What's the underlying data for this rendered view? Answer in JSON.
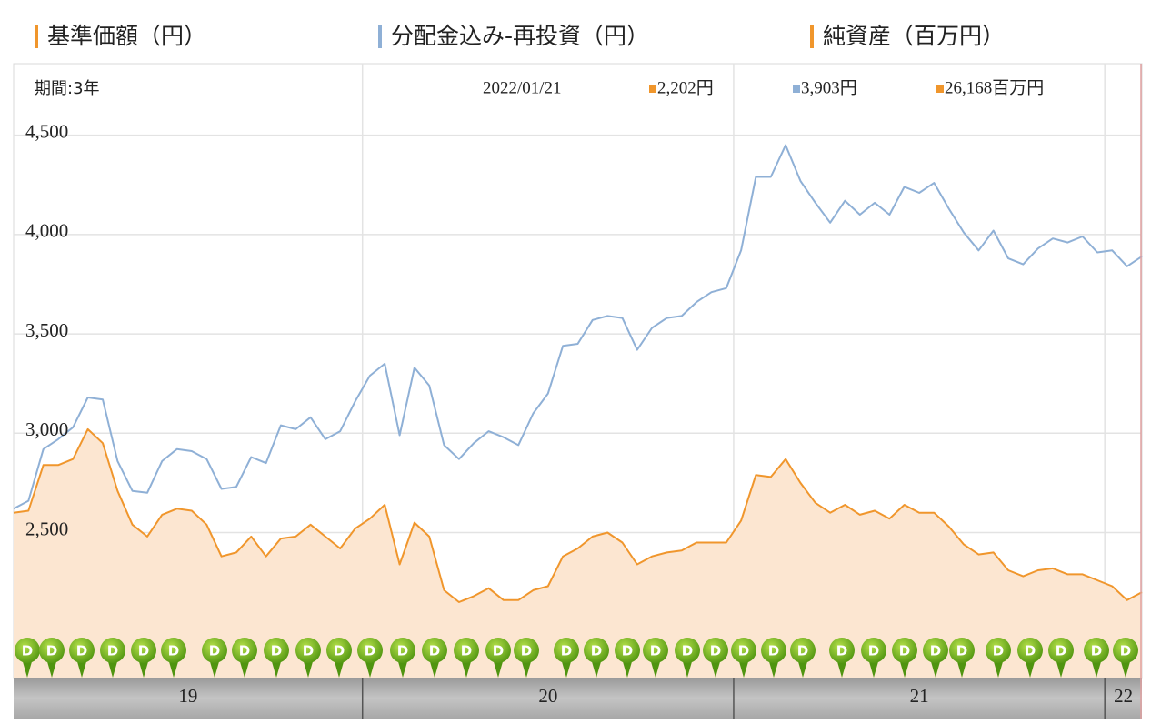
{
  "header": [
    {
      "label": "基準価額（円）",
      "color": "#f0962c"
    },
    {
      "label": "分配金込み-再投資（円）",
      "color": "#8fb0d6"
    },
    {
      "label": "純資産（百万円）",
      "color": "#f0962c"
    }
  ],
  "chart_data": {
    "type": "line",
    "status": {
      "period": "期間:3年",
      "date": "2022/01/21",
      "items": [
        {
          "label": "2,202円",
          "color": "#f0962c"
        },
        {
          "label": "3,903円",
          "color": "#8fb0d6"
        },
        {
          "label": "26,168百万円",
          "color": "#f0962c"
        }
      ]
    },
    "marker_label": "D",
    "xlim": [
      2019.06,
      2022.1
    ],
    "xticks": [
      2020,
      2021,
      2022
    ],
    "year_labels": [
      "19",
      "20",
      "21",
      "22"
    ],
    "ylim": [
      1770,
      4860
    ],
    "yticks": [
      {
        "value": 2500,
        "label": "2,500"
      },
      {
        "value": 3000,
        "label": "3,000"
      },
      {
        "value": 3500,
        "label": "3,500"
      },
      {
        "value": 4000,
        "label": "4,000"
      },
      {
        "value": 4500,
        "label": "4,500"
      }
    ],
    "grid": true,
    "x": [
      2019.06,
      2019.1,
      2019.14,
      2019.18,
      2019.22,
      2019.26,
      2019.3,
      2019.34,
      2019.38,
      2019.42,
      2019.46,
      2019.5,
      2019.54,
      2019.58,
      2019.62,
      2019.66,
      2019.7,
      2019.74,
      2019.78,
      2019.82,
      2019.86,
      2019.9,
      2019.94,
      2019.98,
      2020.02,
      2020.06,
      2020.1,
      2020.14,
      2020.18,
      2020.22,
      2020.26,
      2020.3,
      2020.34,
      2020.38,
      2020.42,
      2020.46,
      2020.5,
      2020.54,
      2020.58,
      2020.62,
      2020.66,
      2020.7,
      2020.74,
      2020.78,
      2020.82,
      2020.86,
      2020.9,
      2020.94,
      2020.98,
      2021.02,
      2021.06,
      2021.1,
      2021.14,
      2021.18,
      2021.22,
      2021.26,
      2021.3,
      2021.34,
      2021.38,
      2021.42,
      2021.46,
      2021.5,
      2021.54,
      2021.58,
      2021.62,
      2021.66,
      2021.7,
      2021.74,
      2021.78,
      2021.82,
      2021.86,
      2021.9,
      2021.94,
      2021.98,
      2022.02,
      2022.06,
      2022.1
    ],
    "series": [
      {
        "color": "#8fb0d6",
        "values": [
          2620,
          2660,
          2920,
          2970,
          3030,
          3180,
          3170,
          2860,
          2710,
          2700,
          2860,
          2920,
          2910,
          2870,
          2720,
          2730,
          2880,
          2850,
          3040,
          3020,
          3080,
          2970,
          3010,
          3160,
          3290,
          3350,
          2990,
          3330,
          3240,
          2940,
          2870,
          2950,
          3010,
          2980,
          2940,
          3100,
          3200,
          3440,
          3450,
          3570,
          3590,
          3580,
          3420,
          3530,
          3580,
          3590,
          3660,
          3710,
          3730,
          3920,
          4290,
          4290,
          4450,
          4270,
          4160,
          4060,
          4170,
          4100,
          4160,
          4100,
          4240,
          4210,
          4260,
          4130,
          4010,
          3920,
          4020,
          3880,
          3850,
          3930,
          3980,
          3960,
          3990,
          3910,
          3920,
          3840,
          3890
        ]
      },
      {
        "color": "#f0962c",
        "fill": "#fce6d1",
        "values": [
          2600,
          2610,
          2840,
          2840,
          2870,
          3020,
          2950,
          2710,
          2540,
          2480,
          2590,
          2620,
          2610,
          2540,
          2380,
          2400,
          2480,
          2380,
          2470,
          2480,
          2540,
          2480,
          2420,
          2520,
          2570,
          2640,
          2340,
          2550,
          2480,
          2210,
          2150,
          2180,
          2220,
          2160,
          2160,
          2210,
          2230,
          2380,
          2420,
          2480,
          2500,
          2450,
          2340,
          2380,
          2400,
          2410,
          2450,
          2450,
          2450,
          2560,
          2790,
          2780,
          2870,
          2750,
          2650,
          2600,
          2640,
          2590,
          2610,
          2570,
          2640,
          2600,
          2600,
          2530,
          2440,
          2390,
          2400,
          2310,
          2280,
          2310,
          2320,
          2290,
          2290,
          2260,
          2230,
          2160,
          2200
        ]
      }
    ]
  }
}
